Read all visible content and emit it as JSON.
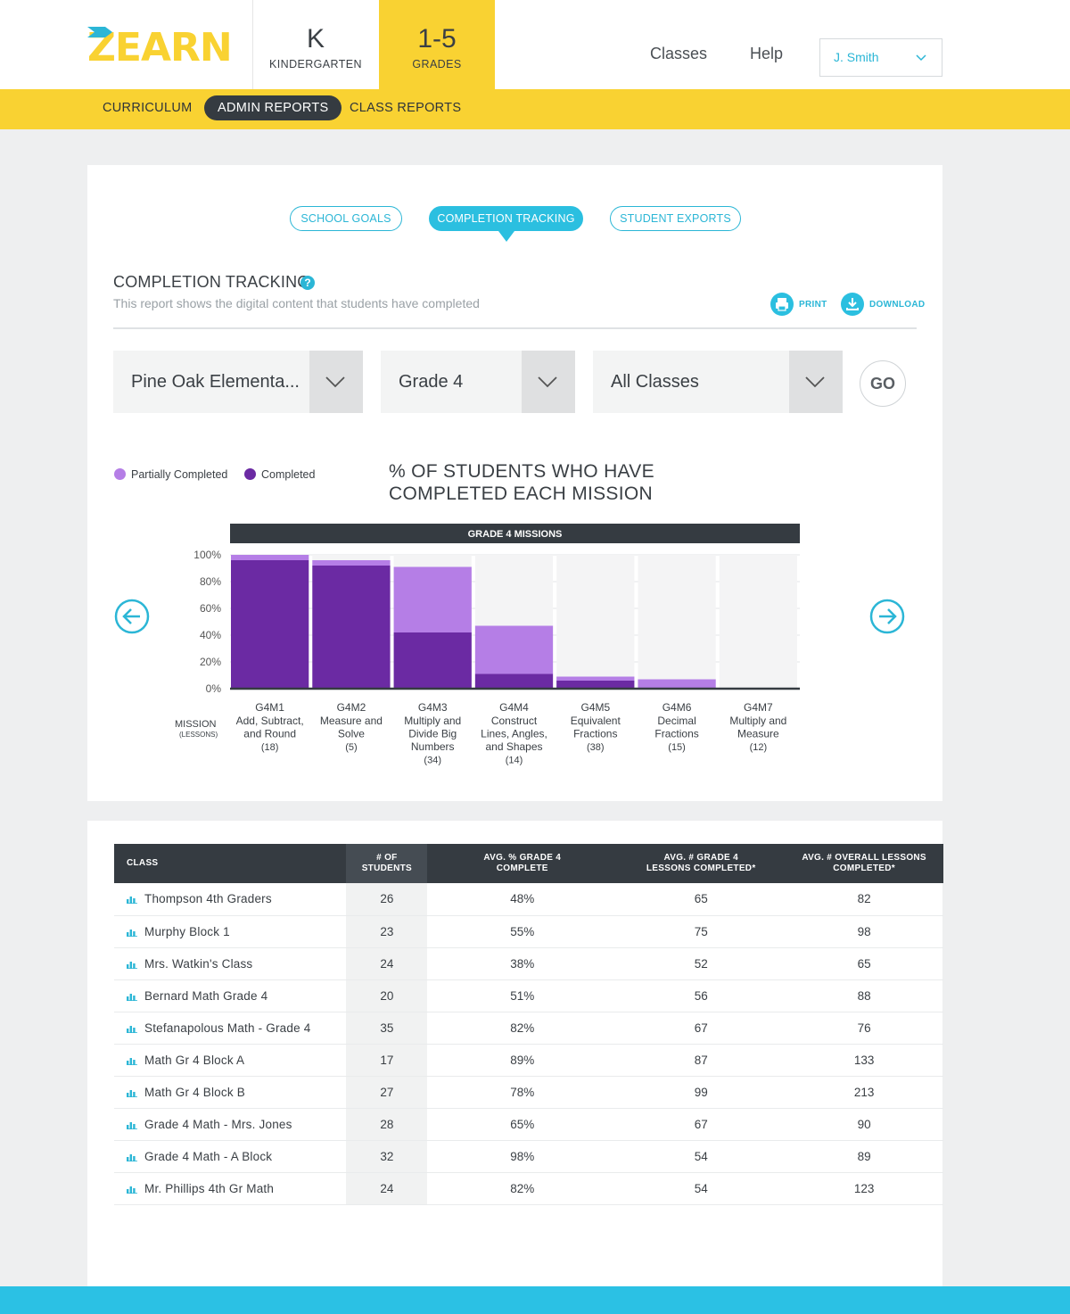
{
  "brand": {
    "logo_text": "ZEARN",
    "accent": "#f9d232",
    "teal": "#2bb6d6"
  },
  "grade_tabs": [
    {
      "big": "K",
      "small": "KINDERGARTEN",
      "active": false
    },
    {
      "big": "1-5",
      "small": "GRADES",
      "active": true
    }
  ],
  "top_nav": {
    "classes": "Classes",
    "help": "Help",
    "user": "J. Smith"
  },
  "subnav": [
    {
      "label": "CURRICULUM",
      "active": false
    },
    {
      "label": "ADMIN REPORTS",
      "active": true
    },
    {
      "label": "CLASS REPORTS",
      "active": false
    }
  ],
  "report_tabs": [
    {
      "label": "SCHOOL GOALS",
      "active": false
    },
    {
      "label": "COMPLETION TRACKING",
      "active": true
    },
    {
      "label": "STUDENT EXPORTS",
      "active": false
    }
  ],
  "section": {
    "title": "COMPLETION TRACKING",
    "help_icon": "question-icon",
    "subtitle": "This report shows the digital content that students have completed",
    "print_label": "PRINT",
    "download_label": "DOWNLOAD"
  },
  "filters": {
    "school": "Pine Oak Elementa...",
    "grade": "Grade 4",
    "class": "All Classes",
    "go_label": "GO"
  },
  "legend": {
    "partial": "Partially Completed",
    "completed": "Completed"
  },
  "chart_data": {
    "type": "bar",
    "stacked": true,
    "title": "% OF STUDENTS WHO HAVE COMPLETED EACH MISSION",
    "band_label": "GRADE 4 MISSIONS",
    "xlabel": "MISSION",
    "xlabel_sub": "(LESSONS)",
    "ylim": [
      0,
      100
    ],
    "y_ticks": [
      "100%",
      "80%",
      "60%",
      "40%",
      "20%",
      "0%"
    ],
    "categories": [
      "G4M1",
      "G4M2",
      "G4M3",
      "G4M4",
      "G4M5",
      "G4M6",
      "G4M7"
    ],
    "category_names": [
      [
        "Add, Subtract,",
        "and Round"
      ],
      [
        "Measure and",
        "Solve"
      ],
      [
        "Multiply and",
        "Divide Big",
        "Numbers"
      ],
      [
        "Construct",
        "Lines, Angles,",
        "and Shapes"
      ],
      [
        "Equivalent",
        "Fractions"
      ],
      [
        "Decimal",
        "Fractions"
      ],
      [
        "Multiply and",
        "Measure"
      ]
    ],
    "lessons": [
      "(18)",
      "(5)",
      "(34)",
      "(14)",
      "(38)",
      "(15)",
      "(12)"
    ],
    "series": [
      {
        "name": "Completed",
        "color": "#6b2aa3",
        "values": [
          96,
          92,
          42,
          11,
          6,
          0,
          0
        ]
      },
      {
        "name": "Partially Completed",
        "color": "#b57ee6",
        "values": [
          4,
          4,
          49,
          36,
          3,
          7,
          0
        ]
      }
    ]
  },
  "table": {
    "headers": [
      [
        "CLASS"
      ],
      [
        "# OF",
        "STUDENTS"
      ],
      [
        "AVG. % GRADE 4",
        "COMPLETE"
      ],
      [
        "AVG. # GRADE 4",
        "LESSONS COMPLETED*"
      ],
      [
        "AVG. # OVERALL LESSONS",
        "COMPLETED*"
      ]
    ],
    "rows": [
      {
        "cls": "Thompson 4th Graders",
        "students": "26",
        "pct": "48%",
        "g4": "65",
        "overall": "82"
      },
      {
        "cls": "Murphy Block 1",
        "students": "23",
        "pct": "55%",
        "g4": "75",
        "overall": "98"
      },
      {
        "cls": "Mrs. Watkin's Class",
        "students": "24",
        "pct": "38%",
        "g4": "52",
        "overall": "65"
      },
      {
        "cls": "Bernard Math Grade 4",
        "students": "20",
        "pct": "51%",
        "g4": "56",
        "overall": "88"
      },
      {
        "cls": "Stefanapolous Math - Grade 4",
        "students": "35",
        "pct": "82%",
        "g4": "67",
        "overall": "76"
      },
      {
        "cls": "Math Gr 4 Block A",
        "students": "17",
        "pct": "89%",
        "g4": "87",
        "overall": "133"
      },
      {
        "cls": "Math Gr 4 Block B",
        "students": "27",
        "pct": "78%",
        "g4": "99",
        "overall": "213"
      },
      {
        "cls": "Grade 4 Math - Mrs. Jones",
        "students": "28",
        "pct": "65%",
        "g4": "67",
        "overall": "90"
      },
      {
        "cls": "Grade 4 Math - A Block",
        "students": "32",
        "pct": "98%",
        "g4": "54",
        "overall": "89"
      },
      {
        "cls": "Mr. Phillips 4th Gr Math",
        "students": "24",
        "pct": "82%",
        "g4": "54",
        "overall": "123"
      }
    ]
  }
}
